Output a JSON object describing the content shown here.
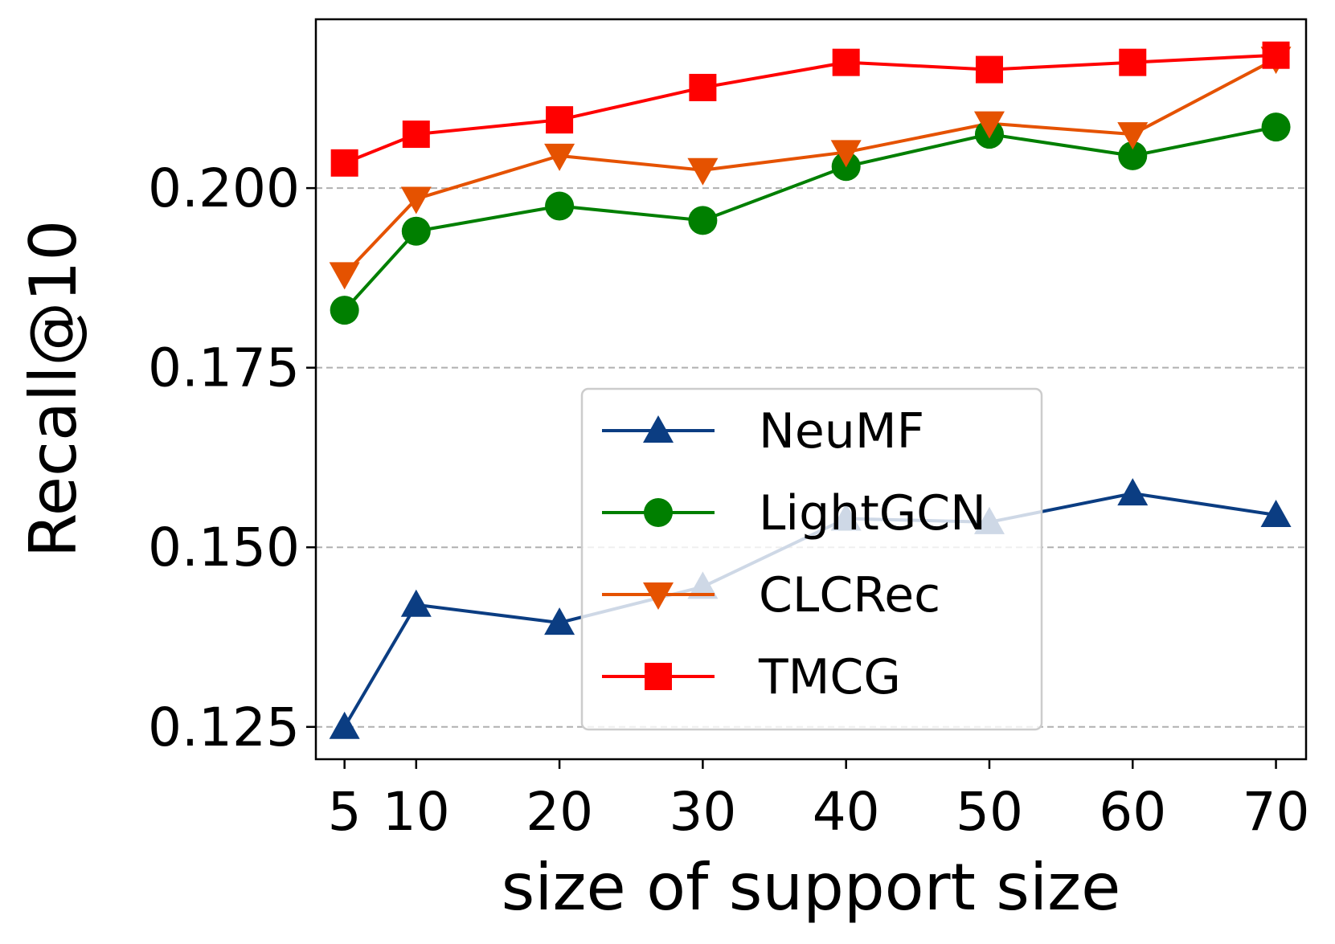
{
  "chart_data": {
    "type": "line",
    "title": "",
    "xlabel": "size of support size",
    "ylabel": "Recall@10",
    "x": [
      5,
      10,
      20,
      30,
      40,
      50,
      60,
      70
    ],
    "x_tick_labels": [
      "5",
      "10",
      "20",
      "30",
      "40",
      "50",
      "60",
      "70"
    ],
    "ylim": [
      0.1205,
      0.2235
    ],
    "y_ticks": [
      0.125,
      0.15,
      0.175,
      0.2
    ],
    "y_tick_labels": [
      "0.125",
      "0.150",
      "0.175",
      "0.200"
    ],
    "grid": "horizontal dashed",
    "legend_position": "center-right",
    "series": [
      {
        "name": "NeuMF",
        "color": "#0b3d82",
        "marker": "triangle-up",
        "values": [
          0.125,
          0.142,
          0.1395,
          0.1445,
          0.154,
          0.1535,
          0.1575,
          0.1545
        ]
      },
      {
        "name": "LightGCN",
        "color": "#007f00",
        "marker": "circle",
        "values": [
          0.183,
          0.194,
          0.1975,
          0.1955,
          0.203,
          0.2075,
          0.2045,
          0.2085
        ]
      },
      {
        "name": "CLCRec",
        "color": "#e55200",
        "marker": "triangle-down",
        "values": [
          0.188,
          0.1985,
          0.2045,
          0.2025,
          0.205,
          0.209,
          0.2075,
          0.218
        ]
      },
      {
        "name": "TMCG",
        "color": "#ff0000",
        "marker": "square",
        "values": [
          0.2035,
          0.2075,
          0.2095,
          0.214,
          0.2175,
          0.2165,
          0.2175,
          0.2185
        ]
      }
    ]
  }
}
